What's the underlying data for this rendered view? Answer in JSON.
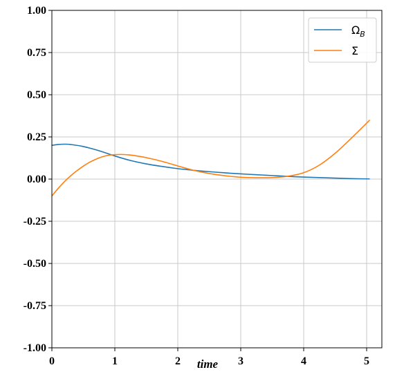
{
  "chart_data": {
    "type": "line",
    "title": "",
    "xlabel": "time",
    "ylabel": "",
    "xlim": [
      0,
      5.2
    ],
    "ylim": [
      -1.0,
      1.0
    ],
    "xticks": [
      0,
      1,
      2,
      3,
      4,
      5
    ],
    "xtick_labels": [
      "0",
      "1",
      "2",
      "3",
      "4",
      "5"
    ],
    "yticks": [
      1.0,
      0.75,
      0.5,
      0.25,
      0.0,
      -0.25,
      -0.5,
      -0.75,
      -1.0
    ],
    "ytick_labels": [
      "1.00",
      "0.75",
      "0.50",
      "0.25",
      "0.00",
      "-0.25",
      "-0.50",
      "-0.75",
      "-1.00"
    ],
    "grid": true,
    "legend_position": "top-right",
    "series": [
      {
        "name": "Ω_B",
        "name_main": "Ω",
        "name_sub": "B",
        "color": "#1f77b4",
        "x": [
          0,
          0.1,
          0.2,
          0.3,
          0.5,
          0.75,
          1.0,
          1.25,
          1.5,
          1.75,
          2.0,
          2.25,
          2.5,
          2.75,
          3.0,
          3.25,
          3.5,
          3.75,
          4.0,
          4.25,
          4.5,
          4.75,
          5.05
        ],
        "y": [
          0.2,
          0.205,
          0.207,
          0.205,
          0.193,
          0.168,
          0.137,
          0.11,
          0.09,
          0.075,
          0.062,
          0.052,
          0.044,
          0.037,
          0.031,
          0.026,
          0.021,
          0.016,
          0.012,
          0.009,
          0.006,
          0.003,
          0.001
        ]
      },
      {
        "name": "Σ",
        "name_main": "Σ",
        "name_sub": "",
        "color": "#ff7f0e",
        "x": [
          0,
          0.1,
          0.2,
          0.3,
          0.4,
          0.5,
          0.6,
          0.7,
          0.8,
          0.9,
          1.0,
          1.1,
          1.2,
          1.3,
          1.5,
          1.75,
          2.0,
          2.25,
          2.5,
          2.75,
          3.0,
          3.25,
          3.5,
          3.75,
          4.0,
          4.25,
          4.5,
          4.75,
          5.05
        ],
        "y": [
          -0.1,
          -0.055,
          -0.015,
          0.02,
          0.05,
          0.077,
          0.1,
          0.118,
          0.132,
          0.141,
          0.145,
          0.146,
          0.144,
          0.14,
          0.127,
          0.105,
          0.078,
          0.052,
          0.033,
          0.02,
          0.011,
          0.008,
          0.009,
          0.017,
          0.038,
          0.083,
          0.153,
          0.24,
          0.35
        ]
      }
    ]
  }
}
